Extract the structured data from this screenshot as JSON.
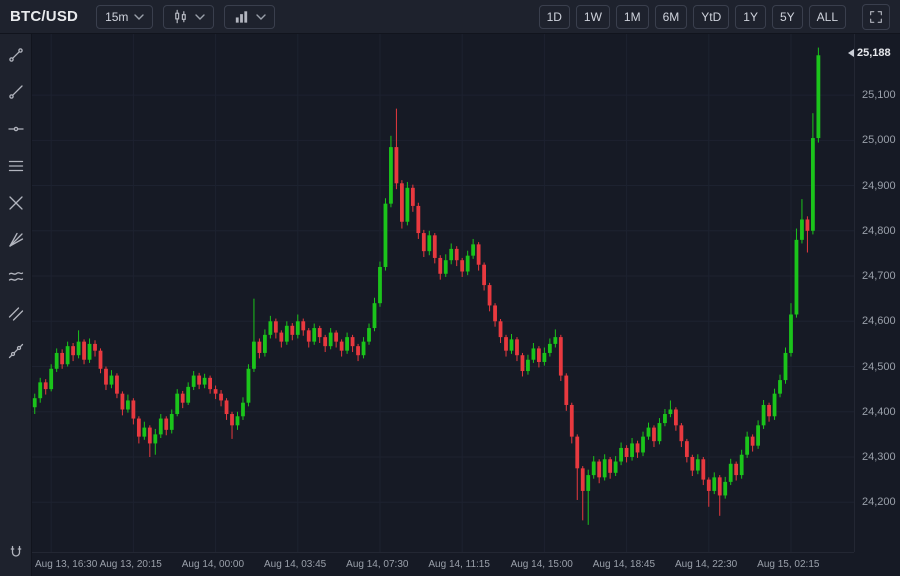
{
  "topbar": {
    "symbol": "BTC/USD",
    "interval": "15m",
    "range_buttons": [
      "1D",
      "1W",
      "1M",
      "6M",
      "YtD",
      "1Y",
      "5Y",
      "ALL"
    ]
  },
  "left_toolbar": {
    "tools": [
      "trend-line",
      "ray",
      "horizontal-line",
      "fib-retracement",
      "cross-line",
      "pitchfork",
      "brush",
      "parallel-channel",
      "extended-line"
    ],
    "bottom_tool": "magnet"
  },
  "chart_data": {
    "type": "candlestick",
    "title": "BTC/USD 15 minute candlestick chart",
    "symbol": "BTC/USD",
    "interval": "15m",
    "y_domain": [
      24090,
      25235
    ],
    "right_pad_slots": 6,
    "last_price": {
      "price": 25188,
      "label": "25,188"
    },
    "price_gridlines": [
      {
        "price": 25100,
        "label": "25,100"
      },
      {
        "price": 25000,
        "label": "25,000"
      },
      {
        "price": 24900,
        "label": "24,900"
      },
      {
        "price": 24800,
        "label": "24,800"
      },
      {
        "price": 24700,
        "label": "24,700"
      },
      {
        "price": 24600,
        "label": "24,600"
      },
      {
        "price": 24500,
        "label": "24,500"
      },
      {
        "price": 24400,
        "label": "24,400"
      },
      {
        "price": 24300,
        "label": "24,300"
      },
      {
        "price": 24200,
        "label": "24,200"
      }
    ],
    "time_labels": [
      {
        "index": 3,
        "label": "Aug 13, 16:30"
      },
      {
        "index": 18,
        "label": "Aug 13, 20:15"
      },
      {
        "index": 33,
        "label": "Aug 14, 00:00"
      },
      {
        "index": 48,
        "label": "Aug 14, 03:45"
      },
      {
        "index": 63,
        "label": "Aug 14, 07:30"
      },
      {
        "index": 78,
        "label": "Aug 14, 11:15"
      },
      {
        "index": 93,
        "label": "Aug 14, 15:00"
      },
      {
        "index": 108,
        "label": "Aug 14, 18:45"
      },
      {
        "index": 123,
        "label": "Aug 14, 22:30"
      },
      {
        "index": 138,
        "label": "Aug 15, 02:15"
      }
    ],
    "candles": [
      [
        24410,
        24440,
        24395,
        24430
      ],
      [
        24430,
        24475,
        24420,
        24465
      ],
      [
        24465,
        24472,
        24438,
        24450
      ],
      [
        24450,
        24505,
        24445,
        24495
      ],
      [
        24495,
        24540,
        24488,
        24530
      ],
      [
        24530,
        24538,
        24495,
        24505
      ],
      [
        24505,
        24555,
        24500,
        24545
      ],
      [
        24545,
        24552,
        24512,
        24525
      ],
      [
        24525,
        24580,
        24518,
        24555
      ],
      [
        24555,
        24560,
        24505,
        24515
      ],
      [
        24515,
        24562,
        24508,
        24550
      ],
      [
        24550,
        24558,
        24522,
        24535
      ],
      [
        24535,
        24540,
        24485,
        24495
      ],
      [
        24495,
        24500,
        24448,
        24460
      ],
      [
        24460,
        24492,
        24452,
        24480
      ],
      [
        24480,
        24485,
        24430,
        24440
      ],
      [
        24440,
        24445,
        24392,
        24405
      ],
      [
        24405,
        24438,
        24398,
        24425
      ],
      [
        24425,
        24430,
        24372,
        24385
      ],
      [
        24385,
        24390,
        24330,
        24345
      ],
      [
        24345,
        24378,
        24338,
        24365
      ],
      [
        24365,
        24370,
        24300,
        24330
      ],
      [
        24330,
        24362,
        24305,
        24350
      ],
      [
        24350,
        24395,
        24342,
        24385
      ],
      [
        24385,
        24390,
        24348,
        24360
      ],
      [
        24360,
        24405,
        24352,
        24395
      ],
      [
        24395,
        24450,
        24390,
        24440
      ],
      [
        24440,
        24446,
        24408,
        24420
      ],
      [
        24420,
        24465,
        24415,
        24455
      ],
      [
        24455,
        24490,
        24448,
        24480
      ],
      [
        24480,
        24486,
        24450,
        24460
      ],
      [
        24460,
        24484,
        24452,
        24475
      ],
      [
        24475,
        24480,
        24440,
        24450
      ],
      [
        24450,
        24458,
        24428,
        24440
      ],
      [
        24440,
        24448,
        24412,
        24425
      ],
      [
        24425,
        24430,
        24382,
        24395
      ],
      [
        24395,
        24400,
        24340,
        24370
      ],
      [
        24370,
        24400,
        24360,
        24390
      ],
      [
        24390,
        24432,
        24382,
        24420
      ],
      [
        24420,
        24505,
        24412,
        24495
      ],
      [
        24495,
        24650,
        24488,
        24555
      ],
      [
        24555,
        24562,
        24518,
        24530
      ],
      [
        24530,
        24582,
        24522,
        24570
      ],
      [
        24570,
        24612,
        24562,
        24600
      ],
      [
        24600,
        24606,
        24562,
        24575
      ],
      [
        24575,
        24580,
        24542,
        24555
      ],
      [
        24555,
        24600,
        24548,
        24590
      ],
      [
        24590,
        24596,
        24558,
        24570
      ],
      [
        24570,
        24615,
        24562,
        24600
      ],
      [
        24600,
        24606,
        24568,
        24580
      ],
      [
        24580,
        24585,
        24542,
        24555
      ],
      [
        24555,
        24595,
        24548,
        24585
      ],
      [
        24585,
        24590,
        24552,
        24565
      ],
      [
        24565,
        24570,
        24532,
        24545
      ],
      [
        24545,
        24585,
        24538,
        24575
      ],
      [
        24575,
        24580,
        24542,
        24555
      ],
      [
        24555,
        24560,
        24522,
        24535
      ],
      [
        24535,
        24575,
        24528,
        24565
      ],
      [
        24565,
        24570,
        24532,
        24545
      ],
      [
        24545,
        24550,
        24512,
        24525
      ],
      [
        24525,
        24565,
        24518,
        24555
      ],
      [
        24555,
        24595,
        24548,
        24585
      ],
      [
        24585,
        24652,
        24578,
        24640
      ],
      [
        24640,
        24732,
        24632,
        24720
      ],
      [
        24720,
        24872,
        24712,
        24860
      ],
      [
        24860,
        25010,
        24852,
        24985
      ],
      [
        24985,
        25070,
        24892,
        24905
      ],
      [
        24905,
        24912,
        24805,
        24820
      ],
      [
        24820,
        24908,
        24812,
        24895
      ],
      [
        24895,
        24902,
        24842,
        24855
      ],
      [
        24855,
        24862,
        24782,
        24795
      ],
      [
        24795,
        24802,
        24742,
        24755
      ],
      [
        24755,
        24800,
        24746,
        24790
      ],
      [
        24790,
        24795,
        24728,
        24740
      ],
      [
        24740,
        24746,
        24692,
        24705
      ],
      [
        24705,
        24748,
        24698,
        24735
      ],
      [
        24735,
        24772,
        24726,
        24760
      ],
      [
        24760,
        24766,
        24722,
        24735
      ],
      [
        24735,
        24740,
        24698,
        24710
      ],
      [
        24710,
        24756,
        24702,
        24745
      ],
      [
        24745,
        24782,
        24738,
        24770
      ],
      [
        24770,
        24775,
        24712,
        24725
      ],
      [
        24725,
        24730,
        24668,
        24680
      ],
      [
        24680,
        24685,
        24622,
        24635
      ],
      [
        24635,
        24640,
        24588,
        24600
      ],
      [
        24600,
        24605,
        24552,
        24565
      ],
      [
        24565,
        24570,
        24522,
        24535
      ],
      [
        24535,
        24572,
        24528,
        24560
      ],
      [
        24560,
        24565,
        24512,
        24525
      ],
      [
        24525,
        24530,
        24478,
        24490
      ],
      [
        24490,
        24526,
        24482,
        24515
      ],
      [
        24515,
        24552,
        24508,
        24540
      ],
      [
        24540,
        24545,
        24498,
        24510
      ],
      [
        24510,
        24542,
        24502,
        24530
      ],
      [
        24530,
        24562,
        24522,
        24550
      ],
      [
        24550,
        24582,
        24542,
        24565
      ],
      [
        24565,
        24570,
        24468,
        24480
      ],
      [
        24480,
        24485,
        24402,
        24415
      ],
      [
        24415,
        24420,
        24330,
        24345
      ],
      [
        24345,
        24350,
        24205,
        24275
      ],
      [
        24275,
        24280,
        24160,
        24225
      ],
      [
        24225,
        24272,
        24150,
        24260
      ],
      [
        24260,
        24302,
        24252,
        24290
      ],
      [
        24290,
        24295,
        24242,
        24255
      ],
      [
        24255,
        24306,
        24248,
        24295
      ],
      [
        24295,
        24300,
        24252,
        24265
      ],
      [
        24265,
        24302,
        24258,
        24290
      ],
      [
        24290,
        24332,
        24282,
        24320
      ],
      [
        24320,
        24326,
        24288,
        24300
      ],
      [
        24300,
        24342,
        24292,
        24330
      ],
      [
        24330,
        24336,
        24298,
        24310
      ],
      [
        24310,
        24356,
        24302,
        24345
      ],
      [
        24345,
        24376,
        24338,
        24365
      ],
      [
        24365,
        24370,
        24322,
        24335
      ],
      [
        24335,
        24386,
        24328,
        24375
      ],
      [
        24375,
        24406,
        24368,
        24395
      ],
      [
        24395,
        24425,
        24388,
        24405
      ],
      [
        24405,
        24410,
        24358,
        24370
      ],
      [
        24370,
        24375,
        24322,
        24335
      ],
      [
        24335,
        24340,
        24288,
        24300
      ],
      [
        24300,
        24305,
        24258,
        24270
      ],
      [
        24270,
        24306,
        24262,
        24295
      ],
      [
        24295,
        24300,
        24238,
        24250
      ],
      [
        24250,
        24255,
        24190,
        24225
      ],
      [
        24225,
        24266,
        24218,
        24255
      ],
      [
        24255,
        24260,
        24170,
        24215
      ],
      [
        24215,
        24256,
        24208,
        24245
      ],
      [
        24245,
        24296,
        24238,
        24285
      ],
      [
        24285,
        24290,
        24248,
        24260
      ],
      [
        24260,
        24316,
        24252,
        24305
      ],
      [
        24305,
        24356,
        24298,
        24345
      ],
      [
        24345,
        24350,
        24312,
        24325
      ],
      [
        24325,
        24381,
        24318,
        24370
      ],
      [
        24370,
        24426,
        24362,
        24415
      ],
      [
        24415,
        24420,
        24378,
        24390
      ],
      [
        24390,
        24451,
        24382,
        24440
      ],
      [
        24440,
        24482,
        24432,
        24470
      ],
      [
        24470,
        24542,
        24462,
        24530
      ],
      [
        24530,
        24640,
        24522,
        24615
      ],
      [
        24615,
        24805,
        24608,
        24780
      ],
      [
        24780,
        24870,
        24772,
        24825
      ],
      [
        24825,
        24832,
        24752,
        24800
      ],
      [
        24800,
        25060,
        24792,
        25005
      ],
      [
        25005,
        25205,
        24995,
        25188
      ]
    ],
    "colors": {
      "up": "#1bc41b",
      "down": "#e8393f",
      "background": "#161a25",
      "panel": "#1e222d",
      "border": "#3a3f4d",
      "grid": "#1d2230",
      "axis_text": "#9aa0aa",
      "last_price_text": "#e6e8ec"
    }
  }
}
